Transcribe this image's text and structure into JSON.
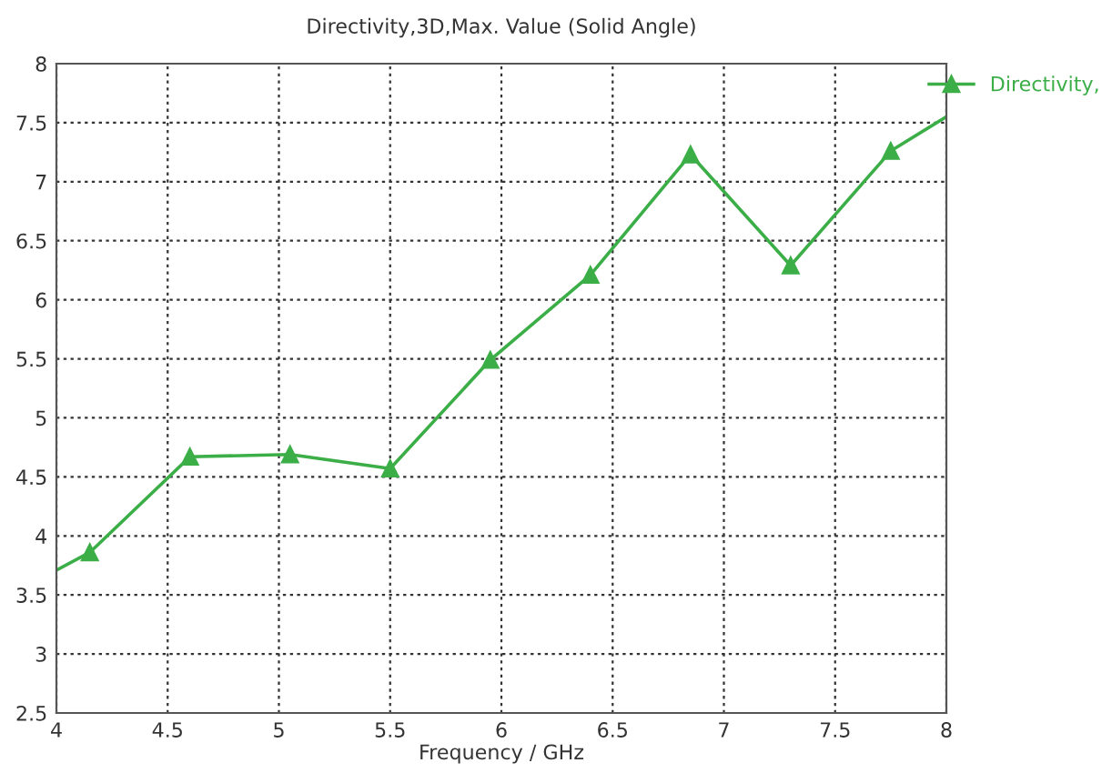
{
  "chart_data": {
    "type": "line",
    "title": "Directivity,3D,Max. Value (Solid Angle)",
    "xlabel": "Frequency / GHz",
    "x": [
      4,
      4.15,
      4.6,
      5.05,
      5.5,
      5.95,
      6.4,
      6.85,
      7.3,
      7.75,
      8
    ],
    "series": [
      {
        "name": "Directivity,",
        "color": "#3cae47",
        "values": [
          3.71,
          3.86,
          4.67,
          4.69,
          4.57,
          5.49,
          6.21,
          7.23,
          6.29,
          7.26,
          7.55
        ]
      }
    ],
    "xlim": [
      4,
      8
    ],
    "xticks": [
      4,
      4.5,
      5,
      5.5,
      6,
      6.5,
      7,
      7.5,
      8
    ],
    "ylim": [
      2.5,
      8
    ],
    "yticks": [
      2.5,
      3,
      3.5,
      4,
      4.5,
      5,
      5.5,
      6,
      6.5,
      7,
      7.5,
      8
    ],
    "grid": true,
    "legend": "top right",
    "marker": "triangle",
    "line_style": "solid"
  }
}
